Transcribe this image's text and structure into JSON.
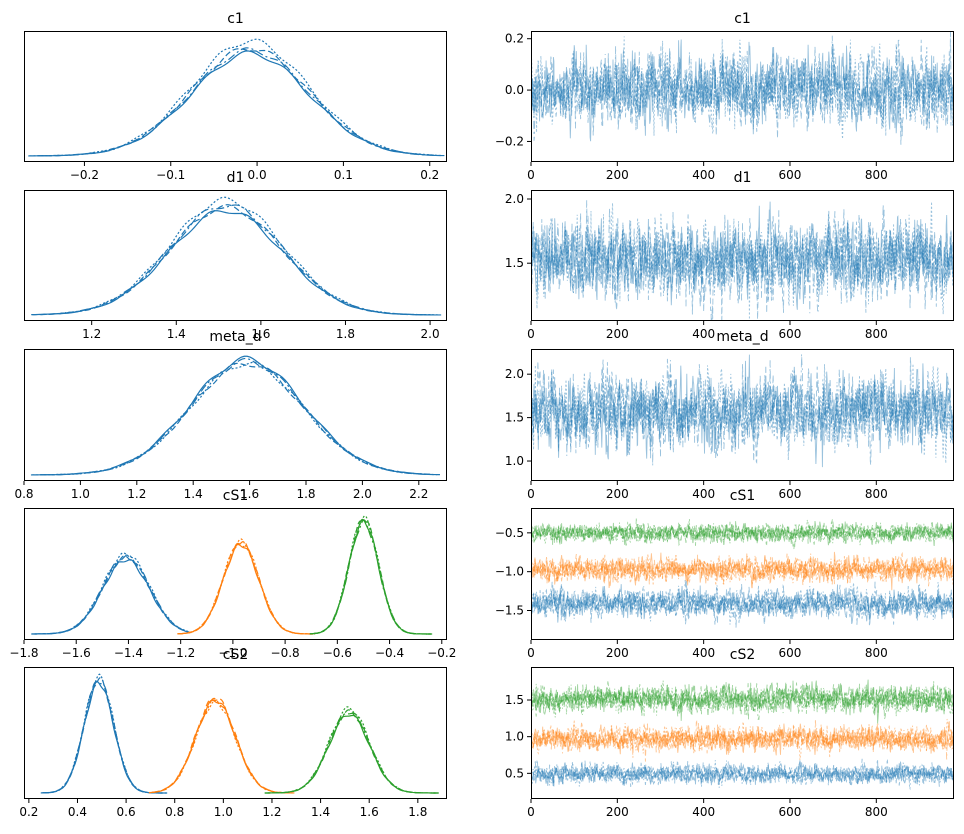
{
  "chart_data": [
    {
      "type": "line",
      "subtype": "kde",
      "title": "c1",
      "xlim": [
        -0.27,
        0.22
      ],
      "xticks": [
        -0.2,
        -0.1,
        0.0,
        0.1,
        0.2
      ],
      "xtick_labels": [
        "−0.2",
        "−0.1",
        "0.0",
        "0.1",
        "0.2"
      ],
      "yticks": [],
      "series": [
        {
          "name": "c1",
          "color": "#1f77b4",
          "support": [
            -0.26,
            0.21
          ],
          "mean": -0.005,
          "sd": 0.066,
          "peaks": [
            1.0,
            1.05,
            1.12,
            1.03
          ]
        }
      ]
    },
    {
      "type": "line",
      "subtype": "trace",
      "title": "c1",
      "xlim": [
        0,
        980
      ],
      "ylim": [
        -0.28,
        0.23
      ],
      "xticks": [
        0,
        200,
        400,
        600,
        800
      ],
      "xtick_labels": [
        "0",
        "200",
        "400",
        "600",
        "800"
      ],
      "yticks": [
        -0.2,
        0.0,
        0.2
      ],
      "ytick_labels": [
        "−0.2",
        "0.0",
        "0.2"
      ],
      "n_draws": 1000,
      "series": [
        {
          "name": "c1",
          "color": "#1f77b4",
          "mean": 0.0,
          "sd": 0.066
        }
      ]
    },
    {
      "type": "line",
      "subtype": "kde",
      "title": "d1",
      "xlim": [
        1.04,
        2.04
      ],
      "xticks": [
        1.2,
        1.4,
        1.6,
        1.8,
        2.0
      ],
      "xtick_labels": [
        "1.2",
        "1.4",
        "1.6",
        "1.8",
        "2.0"
      ],
      "yticks": [],
      "series": [
        {
          "name": "d1",
          "color": "#1f77b4",
          "support": [
            1.07,
            2.01
          ],
          "mean": 1.53,
          "sd": 0.14,
          "peaks": [
            1.0,
            1.03,
            1.1,
            1.05
          ]
        }
      ]
    },
    {
      "type": "line",
      "subtype": "trace",
      "title": "d1",
      "xlim": [
        0,
        980
      ],
      "ylim": [
        1.05,
        2.07
      ],
      "xticks": [
        0,
        200,
        400,
        600,
        800
      ],
      "xtick_labels": [
        "0",
        "200",
        "400",
        "600",
        "800"
      ],
      "yticks": [
        1.5,
        2.0
      ],
      "ytick_labels": [
        "1.5",
        "2.0"
      ],
      "n_draws": 1000,
      "series": [
        {
          "name": "d1",
          "color": "#1f77b4",
          "mean": 1.53,
          "sd": 0.14
        }
      ]
    },
    {
      "type": "line",
      "subtype": "kde",
      "title": "meta_d",
      "xlim": [
        0.8,
        2.3
      ],
      "xticks": [
        0.8,
        1.0,
        1.2,
        1.4,
        1.6,
        1.8,
        2.0,
        2.2
      ],
      "xtick_labels": [
        "0.8",
        "1.0",
        "1.2",
        "1.4",
        "1.6",
        "1.8",
        "2.0",
        "2.2"
      ],
      "yticks": [],
      "series": [
        {
          "name": "meta_d",
          "color": "#1f77b4",
          "support": [
            0.85,
            2.25
          ],
          "mean": 1.58,
          "sd": 0.2,
          "peaks": [
            1.04,
            1.0,
            1.0,
            1.02
          ]
        }
      ]
    },
    {
      "type": "line",
      "subtype": "trace",
      "title": "meta_d",
      "xlim": [
        0,
        980
      ],
      "ylim": [
        0.77,
        2.29
      ],
      "xticks": [
        0,
        200,
        400,
        600,
        800
      ],
      "xtick_labels": [
        "0",
        "200",
        "400",
        "600",
        "800"
      ],
      "yticks": [
        1.0,
        1.5,
        2.0
      ],
      "ytick_labels": [
        "1.0",
        "1.5",
        "2.0"
      ],
      "n_draws": 1000,
      "series": [
        {
          "name": "meta_d",
          "color": "#1f77b4",
          "mean": 1.58,
          "sd": 0.2
        }
      ]
    },
    {
      "type": "line",
      "subtype": "kde",
      "title": "cS1",
      "xlim": [
        -1.8,
        -0.18
      ],
      "xticks": [
        -1.8,
        -1.6,
        -1.4,
        -1.2,
        -1.0,
        -0.8,
        -0.6,
        -0.4,
        -0.2
      ],
      "xtick_labels": [
        "−1.8",
        "−1.6",
        "−1.4",
        "−1.2",
        "−1.0",
        "−0.8",
        "−0.6",
        "−0.4",
        "−0.2"
      ],
      "yticks": [],
      "series": [
        {
          "name": "cS1[0]",
          "color": "#1f77b4",
          "support": [
            -1.76,
            -1.17
          ],
          "mean": -1.41,
          "sd": 0.085,
          "peaks": [
            0.64,
            0.66,
            0.69,
            0.67
          ]
        },
        {
          "name": "cS1[1]",
          "color": "#ff7f0e",
          "support": [
            -1.21,
            -0.69
          ],
          "mean": -0.97,
          "sd": 0.07,
          "peaks": [
            0.77,
            0.79,
            0.8,
            0.78
          ]
        },
        {
          "name": "cS1[2]",
          "color": "#2ca02c",
          "support": [
            -0.7,
            -0.24
          ],
          "mean": -0.5,
          "sd": 0.056,
          "peaks": [
            0.97,
            0.99,
            1.0,
            0.96
          ]
        }
      ]
    },
    {
      "type": "line",
      "subtype": "trace",
      "title": "cS1",
      "xlim": [
        0,
        980
      ],
      "ylim": [
        -1.88,
        -0.18
      ],
      "xticks": [
        0,
        200,
        400,
        600,
        800
      ],
      "xtick_labels": [
        "0",
        "200",
        "400",
        "600",
        "800"
      ],
      "yticks": [
        -1.5,
        -1.0,
        -0.5
      ],
      "ytick_labels": [
        "−1.5",
        "−1.0",
        "−0.5"
      ],
      "n_draws": 1000,
      "series": [
        {
          "name": "cS1[0]",
          "color": "#1f77b4",
          "mean": -1.41,
          "sd": 0.085
        },
        {
          "name": "cS1[1]",
          "color": "#ff7f0e",
          "mean": -0.97,
          "sd": 0.07
        },
        {
          "name": "cS1[2]",
          "color": "#2ca02c",
          "mean": -0.5,
          "sd": 0.056
        }
      ]
    },
    {
      "type": "line",
      "subtype": "kde",
      "title": "cS2",
      "xlim": [
        0.18,
        1.92
      ],
      "xticks": [
        0.2,
        0.4,
        0.6,
        0.8,
        1.0,
        1.2,
        1.4,
        1.6,
        1.8
      ],
      "xtick_labels": [
        "0.2",
        "0.4",
        "0.6",
        "0.8",
        "1.0",
        "1.2",
        "1.4",
        "1.6",
        "1.8"
      ],
      "yticks": [],
      "series": [
        {
          "name": "cS2[0]",
          "color": "#1f77b4",
          "support": [
            0.25,
            0.76
          ],
          "mean": 0.49,
          "sd": 0.062,
          "peaks": [
            0.95,
            0.98,
            1.0,
            0.97
          ]
        },
        {
          "name": "cS2[1]",
          "color": "#ff7f0e",
          "support": [
            0.7,
            1.29
          ],
          "mean": 0.97,
          "sd": 0.08,
          "peaks": [
            0.8,
            0.82,
            0.78,
            0.8
          ]
        },
        {
          "name": "cS2[2]",
          "color": "#2ca02c",
          "support": [
            1.18,
            1.88
          ],
          "mean": 1.52,
          "sd": 0.088,
          "peaks": [
            0.68,
            0.7,
            0.73,
            0.7
          ]
        }
      ]
    },
    {
      "type": "line",
      "subtype": "trace",
      "title": "cS2",
      "xlim": [
        0,
        980
      ],
      "ylim": [
        0.15,
        1.95
      ],
      "xticks": [
        0,
        200,
        400,
        600,
        800
      ],
      "xtick_labels": [
        "0",
        "200",
        "400",
        "600",
        "800"
      ],
      "yticks": [
        0.5,
        1.0,
        1.5
      ],
      "ytick_labels": [
        "0.5",
        "1.0",
        "1.5"
      ],
      "n_draws": 1000,
      "series": [
        {
          "name": "cS2[0]",
          "color": "#1f77b4",
          "mean": 0.49,
          "sd": 0.062
        },
        {
          "name": "cS2[1]",
          "color": "#ff7f0e",
          "mean": 0.97,
          "sd": 0.08
        },
        {
          "name": "cS2[2]",
          "color": "#2ca02c",
          "mean": 1.52,
          "sd": 0.088
        }
      ]
    }
  ]
}
